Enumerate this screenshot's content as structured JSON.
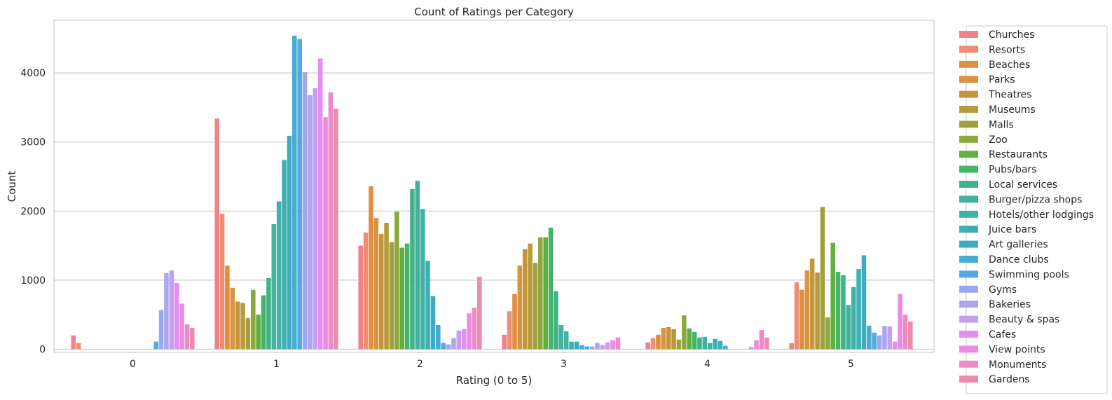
{
  "chart_data": {
    "type": "bar",
    "title": "Count of Ratings per Category",
    "xlabel": "Rating (0 to 5)",
    "ylabel": "Count",
    "ylim": [
      0,
      4800
    ],
    "yticks": [
      "0",
      "1000",
      "2000",
      "3000",
      "4000"
    ],
    "categories": [
      "0",
      "1",
      "2",
      "3",
      "4",
      "5"
    ],
    "grid": "horizontal",
    "legend_position": "right-outside",
    "series": [
      {
        "name": "Churches",
        "color": "#f0838a",
        "values": [
          200,
          3340,
          1500,
          210,
          100,
          90
        ]
      },
      {
        "name": "Resorts",
        "color": "#ee8d72",
        "values": [
          90,
          1960,
          1690,
          550,
          160,
          970
        ]
      },
      {
        "name": "Beaches",
        "color": "#e28e3f",
        "values": [
          0,
          1210,
          2360,
          800,
          210,
          860
        ]
      },
      {
        "name": "Parks",
        "color": "#d89440",
        "values": [
          0,
          890,
          1900,
          1210,
          310,
          1140
        ]
      },
      {
        "name": "Theatres",
        "color": "#c6963c",
        "values": [
          0,
          690,
          1670,
          1450,
          320,
          1310
        ]
      },
      {
        "name": "Museums",
        "color": "#b79b3b",
        "values": [
          0,
          670,
          1830,
          1530,
          290,
          1110
        ]
      },
      {
        "name": "Malls",
        "color": "#a0a13e",
        "values": [
          0,
          450,
          1550,
          1250,
          140,
          2060
        ]
      },
      {
        "name": "Zoo",
        "color": "#8ba93c",
        "values": [
          0,
          860,
          1990,
          1620,
          490,
          460
        ]
      },
      {
        "name": "Restaurants",
        "color": "#5fb040",
        "values": [
          0,
          500,
          1470,
          1620,
          300,
          1540
        ]
      },
      {
        "name": "Pubs/bars",
        "color": "#43b46a",
        "values": [
          0,
          780,
          1530,
          1760,
          250,
          1120
        ]
      },
      {
        "name": "Local services",
        "color": "#41b38a",
        "values": [
          0,
          1030,
          2320,
          840,
          170,
          1070
        ]
      },
      {
        "name": "Burger/pizza shops",
        "color": "#42b29c",
        "values": [
          0,
          1810,
          2440,
          350,
          180,
          640
        ]
      },
      {
        "name": "Hotels/other lodgings",
        "color": "#3fb1a6",
        "values": [
          0,
          2140,
          2030,
          260,
          90,
          900
        ]
      },
      {
        "name": "Juice bars",
        "color": "#3eafb4",
        "values": [
          0,
          2740,
          1280,
          110,
          150,
          1160
        ]
      },
      {
        "name": "Art galleries",
        "color": "#3fabc2",
        "values": [
          0,
          3090,
          770,
          110,
          120,
          1360
        ]
      },
      {
        "name": "Dance clubs",
        "color": "#48acd2",
        "values": [
          0,
          4540,
          350,
          60,
          50,
          340
        ]
      },
      {
        "name": "Swimming pools",
        "color": "#57a7e3",
        "values": [
          110,
          4490,
          90,
          40,
          0,
          240
        ]
      },
      {
        "name": "Gyms",
        "color": "#9aa9ee",
        "values": [
          570,
          4010,
          70,
          40,
          0,
          200
        ]
      },
      {
        "name": "Bakeries",
        "color": "#aea5ef",
        "values": [
          1100,
          3680,
          160,
          90,
          0,
          340
        ]
      },
      {
        "name": "Beauty & spas",
        "color": "#c79ef0",
        "values": [
          1140,
          3780,
          270,
          60,
          0,
          330
        ]
      },
      {
        "name": "Cafes",
        "color": "#e38ef0",
        "values": [
          960,
          4210,
          290,
          100,
          30,
          110
        ]
      },
      {
        "name": "View points",
        "color": "#ec8be0",
        "values": [
          660,
          3360,
          520,
          130,
          130,
          800
        ]
      },
      {
        "name": "Monuments",
        "color": "#ee8ac8",
        "values": [
          360,
          3720,
          600,
          170,
          280,
          500
        ]
      },
      {
        "name": "Gardens",
        "color": "#ef8aad",
        "values": [
          310,
          3480,
          1050,
          0,
          170,
          400
        ]
      }
    ]
  }
}
